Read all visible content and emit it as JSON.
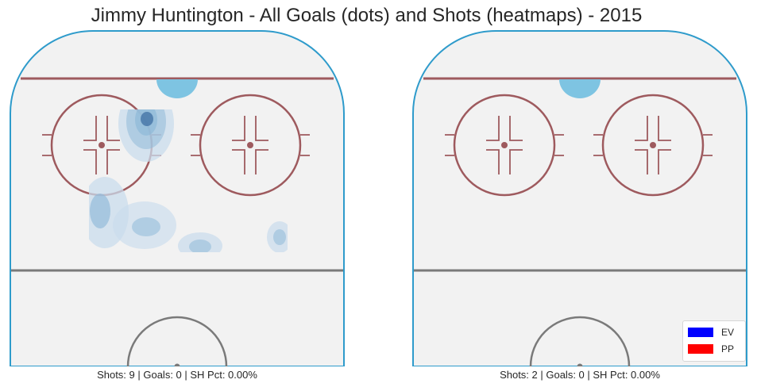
{
  "title": "Jimmy Huntington - All Goals (dots) and Shots (heatmaps) - 2015",
  "colors": {
    "ice": "#f2f2f2",
    "boards": "#2e9bcb",
    "red_line": "#9e5a5e",
    "blue_line": "#7a7a7a",
    "crease": "#7ec4e2",
    "ev": "#0000ff",
    "pp": "#ff0000",
    "heat_light": "#c9dcec",
    "heat_mid": "#8fb9d9",
    "heat_dark": "#3f6fa3"
  },
  "chart_data": [
    {
      "type": "heatmap",
      "panel": "left",
      "caption": "Shots: 9 | Goals: 0 | SH Pct: 0.00%",
      "shots": 9,
      "goals": 0,
      "sh_pct": "0.00%",
      "goal_dots": [],
      "grid": false
    },
    {
      "type": "heatmap",
      "panel": "right",
      "caption": "Shots: 2 | Goals: 0 | SH Pct: 0.00%",
      "shots": 2,
      "goals": 0,
      "sh_pct": "0.00%",
      "goal_dots": [],
      "grid": false
    }
  ],
  "legend": {
    "position": "lower-right",
    "items": [
      {
        "label": "EV",
        "color": "#0000ff"
      },
      {
        "label": "PP",
        "color": "#ff0000"
      }
    ]
  }
}
